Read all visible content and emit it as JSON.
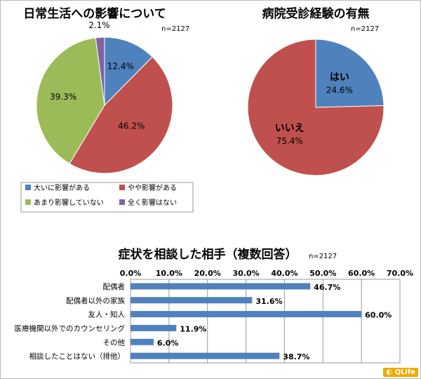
{
  "colors": {
    "blue": "#4f81bd",
    "red": "#c0504d",
    "green": "#9bbb59",
    "purple": "#8064a2",
    "brand": "#f2a900"
  },
  "brand": {
    "text": "QLife",
    "icon": "chat-bubble-icon"
  },
  "chart_data": [
    {
      "type": "pie",
      "title": "日常生活への影響について",
      "n_label": "n=2127",
      "slices": [
        {
          "label": "大いに影響がある",
          "value": 12.4,
          "pct_text": "12.4%",
          "color": "#4f81bd"
        },
        {
          "label": "やや影響がある",
          "value": 46.2,
          "pct_text": "46.2%",
          "color": "#c0504d"
        },
        {
          "label": "あまり影響していない",
          "value": 39.3,
          "pct_text": "39.3%",
          "color": "#9bbb59"
        },
        {
          "label": "全く影響はない",
          "value": 2.1,
          "pct_text": "2.1%",
          "color": "#8064a2"
        }
      ],
      "legend": [
        "大いに影響がある",
        "やや影響がある",
        "あまり影響していない",
        "全く影響はない"
      ]
    },
    {
      "type": "pie",
      "title": "病院受診経験の有無",
      "n_label": "n=2127",
      "slices": [
        {
          "label": "はい",
          "value": 24.6,
          "pct_text": "24.6%",
          "color": "#4f81bd"
        },
        {
          "label": "いいえ",
          "value": 75.4,
          "pct_text": "75.4%",
          "color": "#c0504d"
        }
      ]
    },
    {
      "type": "bar",
      "orientation": "horizontal",
      "title": "症状を相談した相手（複数回答）",
      "n_label": "n=2127",
      "categories": [
        "配偶者",
        "配偶者以外の家族",
        "友人・知人",
        "医療機関以外でのカウンセリング",
        "その他",
        "相談したことはない（排他）"
      ],
      "values": [
        46.7,
        31.6,
        60.0,
        11.9,
        6.0,
        38.7
      ],
      "value_labels": [
        "46.7%",
        "31.6%",
        "60.0%",
        "11.9%",
        "6.0%",
        "38.7%"
      ],
      "xlim": [
        0,
        70
      ],
      "ticks": [
        0,
        10,
        20,
        30,
        40,
        50,
        60,
        70
      ],
      "tick_labels": [
        "0.0%",
        "10.0%",
        "20.0%",
        "30.0%",
        "40.0%",
        "50.0%",
        "60.0%",
        "70.0%"
      ],
      "grid": true,
      "color": "#4f81bd"
    }
  ]
}
